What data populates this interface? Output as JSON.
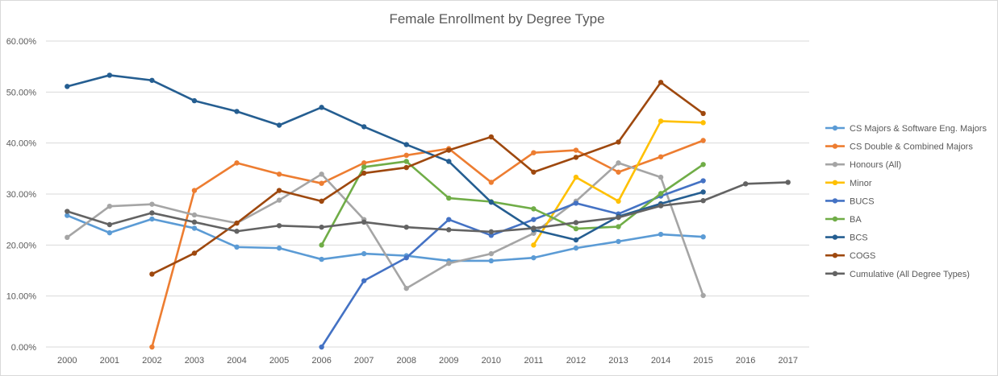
{
  "chart_data": {
    "type": "line",
    "title": "Female Enrollment by Degree Type",
    "xlabel": "",
    "ylabel": "",
    "x": [
      "2000",
      "2001",
      "2002",
      "2003",
      "2004",
      "2005",
      "2006",
      "2007",
      "2008",
      "2009",
      "2010",
      "2011",
      "2012",
      "2013",
      "2014",
      "2015",
      "2016",
      "2017"
    ],
    "ylim": [
      0,
      60
    ],
    "yticks": [
      0,
      10,
      20,
      30,
      40,
      50,
      60
    ],
    "ytick_labels": [
      "0.00%",
      "10.00%",
      "20.00%",
      "30.00%",
      "40.00%",
      "50.00%",
      "60.00%"
    ],
    "grid": "horizontal",
    "legend_position": "right",
    "series": [
      {
        "name": "CS Majors & Software Eng. Majors",
        "color": "#5b9bd5",
        "values": [
          25.8,
          22.4,
          25.1,
          23.3,
          19.6,
          19.4,
          17.2,
          18.3,
          17.9,
          16.9,
          16.9,
          17.5,
          19.4,
          20.7,
          22.1,
          21.6,
          null,
          null
        ]
      },
      {
        "name": "CS Double & Combined Majors",
        "color": "#ed7d31",
        "values": [
          null,
          null,
          0.0,
          30.7,
          36.1,
          33.9,
          32.1,
          36.1,
          37.6,
          38.9,
          32.3,
          38.1,
          38.6,
          34.3,
          37.3,
          40.5,
          null,
          null
        ]
      },
      {
        "name": "Honours (All)",
        "color": "#a5a5a5",
        "values": [
          21.5,
          27.6,
          28.0,
          25.9,
          24.3,
          28.8,
          33.9,
          25.0,
          11.5,
          16.4,
          18.3,
          22.3,
          28.6,
          36.1,
          33.3,
          10.1,
          null,
          null
        ]
      },
      {
        "name": "Minor",
        "color": "#ffc000",
        "values": [
          null,
          null,
          null,
          null,
          null,
          null,
          null,
          null,
          null,
          null,
          null,
          20.0,
          33.3,
          28.6,
          44.3,
          44.0,
          null,
          null
        ]
      },
      {
        "name": "BUCS",
        "color": "#4472c4",
        "values": [
          null,
          null,
          null,
          null,
          null,
          null,
          0.0,
          13.0,
          17.5,
          25.0,
          21.9,
          25.0,
          28.2,
          26.1,
          29.6,
          32.6,
          null,
          null
        ]
      },
      {
        "name": "BA",
        "color": "#70ad47",
        "values": [
          null,
          null,
          null,
          null,
          null,
          null,
          20.0,
          35.3,
          36.4,
          29.2,
          28.5,
          27.1,
          23.2,
          23.6,
          30.1,
          35.8,
          null,
          null
        ]
      },
      {
        "name": "BCS",
        "color": "#255e91",
        "values": [
          51.1,
          53.3,
          52.3,
          48.3,
          46.2,
          43.5,
          47.0,
          43.2,
          39.7,
          36.4,
          28.4,
          23.0,
          21.0,
          25.6,
          28.1,
          30.4,
          null,
          null
        ]
      },
      {
        "name": "COGS",
        "color": "#9e480e",
        "values": [
          null,
          null,
          14.3,
          18.4,
          24.3,
          30.7,
          28.6,
          34.1,
          35.2,
          38.6,
          41.2,
          34.3,
          37.2,
          40.2,
          51.9,
          45.8,
          null,
          null
        ]
      },
      {
        "name": "Cumulative (All Degree Types)",
        "color": "#636363",
        "values": [
          26.6,
          24.0,
          26.3,
          24.5,
          22.7,
          23.8,
          23.5,
          24.5,
          23.5,
          23.0,
          22.6,
          23.3,
          24.4,
          25.4,
          27.7,
          28.7,
          32.0,
          32.3
        ]
      }
    ]
  }
}
